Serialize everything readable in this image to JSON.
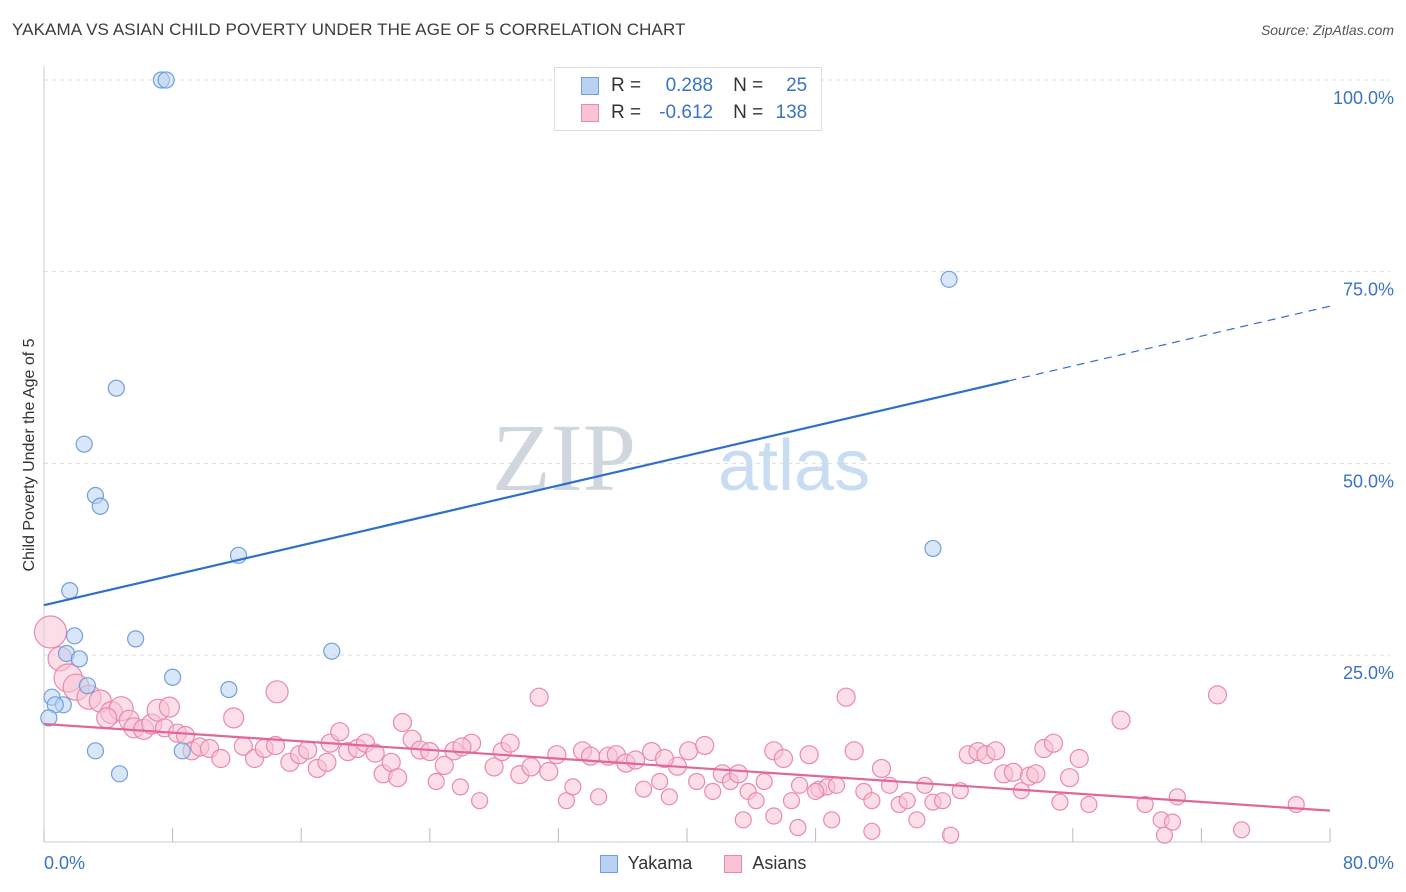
{
  "chart_data": {
    "type": "scatter",
    "title": "YAKAMA VS ASIAN CHILD POVERTY UNDER THE AGE OF 5 CORRELATION CHART",
    "source": "Source: ZipAtlas.com",
    "xlabel": "",
    "ylabel": "Child Poverty Under the Age of 5",
    "xlim": [
      0,
      80
    ],
    "ylim": [
      0,
      105
    ],
    "x_tick_labels": [
      "0.0%",
      "80.0%"
    ],
    "y_tick_labels": [
      "25.0%",
      "50.0%",
      "75.0%",
      "100.0%"
    ],
    "y_tick_values": [
      25,
      50,
      75,
      100
    ],
    "watermark": [
      "ZIP",
      "atlas"
    ],
    "legend": {
      "rows": [
        {
          "series": "Yakama",
          "r_label": "R =",
          "r_value": "0.288",
          "n_label": "N =",
          "n_value": "25"
        },
        {
          "series": "Asians",
          "r_label": "R =",
          "r_value": "-0.612",
          "n_label": "N =",
          "n_value": "138"
        }
      ]
    },
    "series": [
      {
        "name": "Yakama",
        "color": "#6fa0dc",
        "fill": "#b9d2f3",
        "line_color": "#2f6fcc",
        "trend": {
          "x0": 0,
          "y0": 31.5,
          "x1": 80,
          "y1": 70.5,
          "solid_until_x": 60
        },
        "points": [
          [
            7.3,
            100
          ],
          [
            7.6,
            100
          ],
          [
            56.3,
            74
          ],
          [
            4.5,
            59.8
          ],
          [
            2.5,
            52.5
          ],
          [
            3.2,
            45.8
          ],
          [
            3.5,
            44.4
          ],
          [
            12.1,
            38.0
          ],
          [
            55.3,
            38.9
          ],
          [
            1.6,
            33.4
          ],
          [
            1.9,
            27.5
          ],
          [
            5.7,
            27.1
          ],
          [
            17.9,
            25.5
          ],
          [
            1.4,
            25.2
          ],
          [
            2.2,
            24.5
          ],
          [
            8.0,
            22.1
          ],
          [
            11.5,
            20.5
          ],
          [
            2.7,
            21.0
          ],
          [
            0.5,
            19.5
          ],
          [
            1.2,
            18.5
          ],
          [
            0.7,
            18.5
          ],
          [
            0.3,
            16.8
          ],
          [
            8.6,
            12.5
          ],
          [
            3.2,
            12.5
          ],
          [
            4.7,
            9.5
          ]
        ]
      },
      {
        "name": "Asians",
        "color": "#e98aac",
        "fill": "#f7c3d5",
        "line_color": "#e0679a",
        "trend": {
          "x0": 0,
          "y0": 16.0,
          "x1": 80,
          "y1": 4.7,
          "solid_until_x": 80
        },
        "points": [
          [
            0.4,
            28.0,
            16
          ],
          [
            1.0,
            24.5,
            12
          ],
          [
            1.5,
            22.0,
            14
          ],
          [
            2.0,
            20.8,
            13
          ],
          [
            2.8,
            19.5,
            12
          ],
          [
            3.5,
            19.0,
            11
          ],
          [
            4.2,
            17.5,
            11
          ],
          [
            4.8,
            18.0,
            12
          ],
          [
            3.9,
            16.8,
            10
          ],
          [
            5.3,
            16.5,
            10
          ],
          [
            5.6,
            15.5,
            10
          ],
          [
            6.2,
            15.3,
            10
          ],
          [
            6.7,
            16.0,
            10
          ],
          [
            7.1,
            17.8,
            11
          ],
          [
            7.8,
            18.2,
            10
          ],
          [
            7.5,
            15.5,
            9
          ],
          [
            8.3,
            14.8,
            9
          ],
          [
            8.8,
            14.5,
            9
          ],
          [
            9.2,
            12.5,
            9
          ],
          [
            9.7,
            13.0,
            9
          ],
          [
            10.3,
            12.8,
            9
          ],
          [
            11.0,
            11.5,
            9
          ],
          [
            11.8,
            16.8,
            10
          ],
          [
            12.4,
            13.1,
            9
          ],
          [
            13.1,
            11.5,
            9
          ],
          [
            13.7,
            12.8,
            9
          ],
          [
            14.4,
            13.2,
            9
          ],
          [
            14.5,
            20.2,
            11
          ],
          [
            15.3,
            11.0,
            9
          ],
          [
            15.9,
            12.0,
            9
          ],
          [
            16.4,
            12.6,
            9
          ],
          [
            17.0,
            10.2,
            9
          ],
          [
            17.6,
            11.0,
            9
          ],
          [
            17.8,
            13.5,
            9
          ],
          [
            18.4,
            15.0,
            9
          ],
          [
            18.9,
            12.4,
            9
          ],
          [
            19.5,
            12.8,
            9
          ],
          [
            20.0,
            13.5,
            9
          ],
          [
            20.6,
            12.2,
            9
          ],
          [
            21.1,
            9.5,
            9
          ],
          [
            21.6,
            11.0,
            9
          ],
          [
            22.3,
            16.2,
            9
          ],
          [
            22.9,
            14.0,
            9
          ],
          [
            23.4,
            12.6,
            9
          ],
          [
            24.0,
            12.4,
            9
          ],
          [
            24.4,
            8.5,
            8
          ],
          [
            24.9,
            10.6,
            9
          ],
          [
            25.5,
            12.5,
            9
          ],
          [
            25.9,
            7.8,
            8
          ],
          [
            26.6,
            13.5,
            9
          ],
          [
            27.1,
            6.0,
            8
          ],
          [
            28.0,
            10.4,
            9
          ],
          [
            28.5,
            12.4,
            9
          ],
          [
            29.0,
            13.5,
            9
          ],
          [
            29.6,
            9.4,
            9
          ],
          [
            30.3,
            10.4,
            9
          ],
          [
            30.8,
            19.5,
            9
          ],
          [
            31.4,
            9.8,
            9
          ],
          [
            31.9,
            12.0,
            9
          ],
          [
            32.5,
            6.0,
            8
          ],
          [
            32.9,
            7.8,
            8
          ],
          [
            33.5,
            12.5,
            9
          ],
          [
            34.0,
            11.8,
            9
          ],
          [
            34.5,
            6.5,
            8
          ],
          [
            35.1,
            11.8,
            9
          ],
          [
            35.6,
            12.0,
            9
          ],
          [
            36.2,
            10.9,
            9
          ],
          [
            36.8,
            11.3,
            9
          ],
          [
            37.3,
            7.5,
            8
          ],
          [
            37.8,
            12.4,
            9
          ],
          [
            38.3,
            8.5,
            8
          ],
          [
            38.9,
            6.5,
            8
          ],
          [
            39.4,
            10.5,
            9
          ],
          [
            40.1,
            12.5,
            9
          ],
          [
            40.6,
            8.5,
            8
          ],
          [
            41.1,
            13.2,
            9
          ],
          [
            41.6,
            7.2,
            8
          ],
          [
            42.2,
            9.5,
            9
          ],
          [
            42.7,
            8.5,
            8
          ],
          [
            43.2,
            9.5,
            9
          ],
          [
            43.8,
            7.2,
            8
          ],
          [
            44.3,
            6.0,
            8
          ],
          [
            44.8,
            8.5,
            8
          ],
          [
            45.4,
            12.5,
            9
          ],
          [
            46.0,
            11.5,
            9
          ],
          [
            46.5,
            6.0,
            8
          ],
          [
            47.0,
            8.0,
            8
          ],
          [
            47.6,
            12.0,
            9
          ],
          [
            48.2,
            7.5,
            8
          ],
          [
            48.7,
            7.8,
            8
          ],
          [
            49.3,
            8.0,
            8
          ],
          [
            49.9,
            19.5,
            9
          ],
          [
            50.4,
            12.5,
            9
          ],
          [
            51.0,
            7.2,
            8
          ],
          [
            51.5,
            6.0,
            8
          ],
          [
            52.1,
            10.2,
            9
          ],
          [
            52.6,
            8.0,
            8
          ],
          [
            53.2,
            5.5,
            8
          ],
          [
            53.7,
            6.0,
            8
          ],
          [
            54.3,
            3.5,
            8
          ],
          [
            54.8,
            8.0,
            8
          ],
          [
            55.3,
            5.8,
            8
          ],
          [
            55.9,
            6.0,
            8
          ],
          [
            56.4,
            1.5,
            8
          ],
          [
            57.0,
            7.3,
            8
          ],
          [
            57.5,
            12.0,
            9
          ],
          [
            58.1,
            12.4,
            9
          ],
          [
            58.6,
            12.0,
            9
          ],
          [
            59.2,
            12.5,
            9
          ],
          [
            59.7,
            9.5,
            9
          ],
          [
            60.3,
            9.7,
            9
          ],
          [
            60.8,
            7.3,
            8
          ],
          [
            61.3,
            9.2,
            9
          ],
          [
            61.7,
            9.5,
            9
          ],
          [
            62.2,
            12.8,
            9
          ],
          [
            62.8,
            13.5,
            9
          ],
          [
            63.2,
            5.8,
            8
          ],
          [
            63.8,
            9.0,
            9
          ],
          [
            64.4,
            11.5,
            9
          ],
          [
            65.0,
            5.5,
            8
          ],
          [
            48.0,
            7.2,
            8
          ],
          [
            38.6,
            11.5,
            9
          ],
          [
            45.4,
            4.0,
            8
          ],
          [
            46.9,
            2.5,
            8
          ],
          [
            51.5,
            2.0,
            8
          ],
          [
            49.0,
            3.5,
            8
          ],
          [
            43.5,
            3.5,
            8
          ],
          [
            67.0,
            16.5,
            9
          ],
          [
            68.5,
            5.5,
            8
          ],
          [
            69.5,
            3.5,
            8
          ],
          [
            70.5,
            6.5,
            8
          ],
          [
            69.7,
            1.5,
            8
          ],
          [
            70.2,
            3.2,
            8
          ],
          [
            73.0,
            19.8,
            9
          ],
          [
            74.5,
            2.2,
            8
          ],
          [
            77.9,
            5.5,
            8
          ],
          [
            26.0,
            13.0,
            9
          ],
          [
            22.0,
            9.0,
            9
          ]
        ]
      }
    ]
  }
}
